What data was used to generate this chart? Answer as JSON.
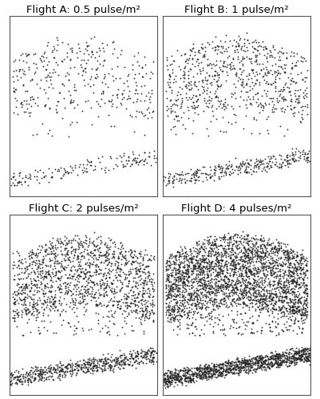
{
  "titles": [
    "Flight A: 0.5 pulse/m²",
    "Flight B: 1 pulse/m²",
    "Flight C: 2 pulses/m²",
    "Flight D: 4 pulses/m²"
  ],
  "n_canopy": [
    380,
    760,
    1520,
    3040
  ],
  "n_ground": [
    160,
    320,
    640,
    1280
  ],
  "dot_size": 1.8,
  "dot_color": "#222222",
  "background_color": "#ffffff",
  "border_color": "#555555",
  "title_fontsize": 9.5,
  "fig_width": 4.01,
  "fig_height": 5.0,
  "seed": 42
}
